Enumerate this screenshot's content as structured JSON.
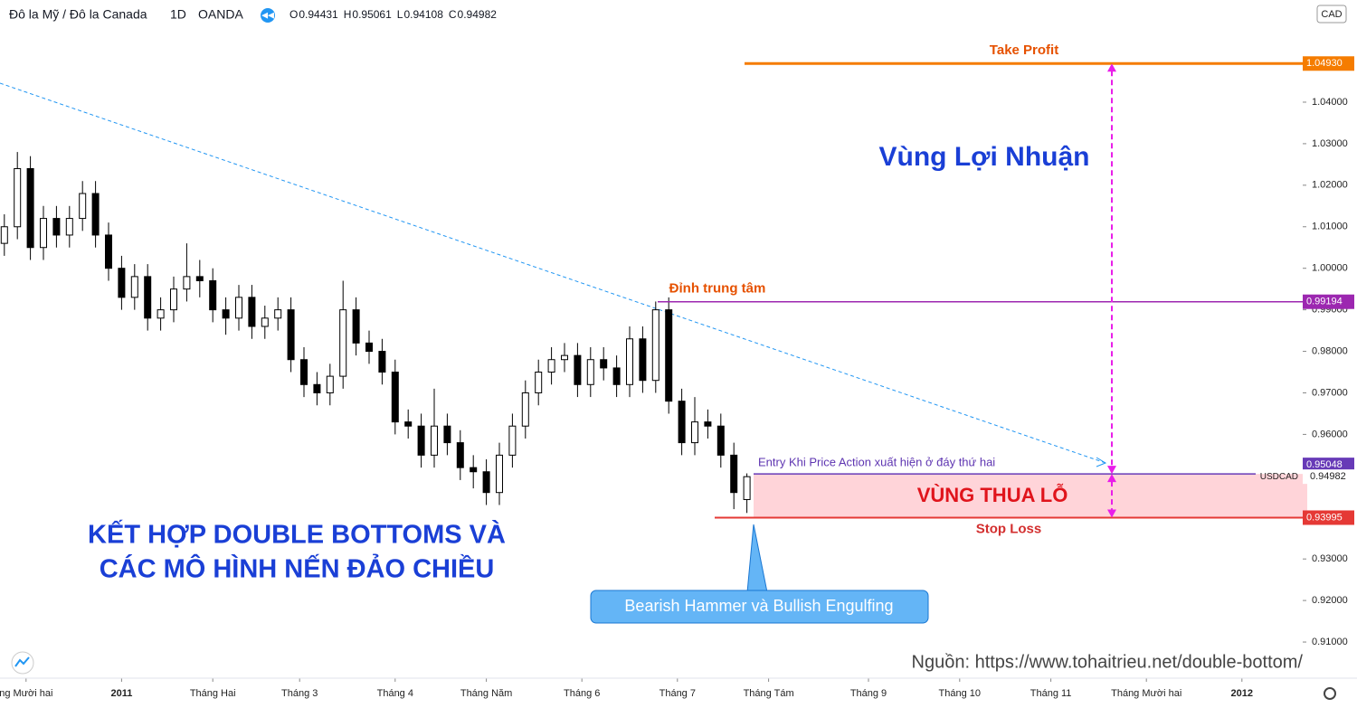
{
  "chart_data": {
    "type": "candlestick",
    "symbol": "Đô la Mỹ / Đô la Canada",
    "interval": "1D",
    "exchange": "OANDA",
    "currency": "CAD",
    "ticker": "USDCAD",
    "ohlc_labels": [
      "O",
      "H",
      "L",
      "C"
    ],
    "up_color": "#ffffff",
    "down_color": "#000000",
    "x": [
      1,
      4,
      7,
      10,
      13,
      16,
      19,
      22,
      25,
      28,
      31,
      34,
      37,
      40,
      43,
      46,
      49,
      52,
      55,
      58,
      61,
      64,
      67,
      70,
      73,
      76,
      79,
      82,
      85,
      88,
      91,
      94,
      97,
      100,
      103,
      106,
      109,
      112,
      115,
      118,
      121,
      124,
      127,
      130,
      133,
      136,
      139,
      142,
      145,
      148,
      151,
      154,
      157,
      160,
      163,
      166,
      169,
      172
    ],
    "open": [
      1.006,
      1.01,
      1.024,
      1.005,
      1.012,
      1.008,
      1.012,
      1.018,
      1.008,
      1.0,
      0.993,
      0.998,
      0.988,
      0.99,
      0.995,
      0.998,
      0.997,
      0.99,
      0.988,
      0.993,
      0.986,
      0.988,
      0.99,
      0.978,
      0.972,
      0.97,
      0.974,
      0.99,
      0.982,
      0.98,
      0.975,
      0.963,
      0.962,
      0.955,
      0.962,
      0.958,
      0.952,
      0.951,
      0.946,
      0.955,
      0.962,
      0.97,
      0.975,
      0.978,
      0.979,
      0.972,
      0.978,
      0.976,
      0.972,
      0.983,
      0.973,
      0.99,
      0.968,
      0.958,
      0.963,
      0.962,
      0.955,
      0.94431
    ],
    "high": [
      1.013,
      1.028,
      1.027,
      1.015,
      1.015,
      1.015,
      1.021,
      1.021,
      1.011,
      1.003,
      1.001,
      1.001,
      0.993,
      0.998,
      1.006,
      1.002,
      1.0,
      0.993,
      0.996,
      0.996,
      0.991,
      0.993,
      0.993,
      0.981,
      0.975,
      0.977,
      0.997,
      0.993,
      0.985,
      0.983,
      0.978,
      0.966,
      0.965,
      0.971,
      0.965,
      0.961,
      0.955,
      0.954,
      0.958,
      0.965,
      0.973,
      0.978,
      0.981,
      0.982,
      0.982,
      0.981,
      0.981,
      0.979,
      0.986,
      0.986,
      0.992,
      0.993,
      0.971,
      0.969,
      0.966,
      0.965,
      0.958,
      0.95061
    ],
    "low": [
      1.003,
      1.007,
      1.002,
      1.002,
      1.005,
      1.005,
      1.009,
      1.005,
      0.997,
      0.99,
      0.99,
      0.985,
      0.985,
      0.987,
      0.992,
      0.993,
      0.987,
      0.984,
      0.985,
      0.983,
      0.983,
      0.985,
      0.975,
      0.969,
      0.967,
      0.967,
      0.971,
      0.979,
      0.977,
      0.972,
      0.96,
      0.959,
      0.952,
      0.952,
      0.955,
      0.949,
      0.947,
      0.943,
      0.943,
      0.952,
      0.959,
      0.967,
      0.972,
      0.975,
      0.969,
      0.969,
      0.973,
      0.969,
      0.969,
      0.97,
      0.97,
      0.965,
      0.955,
      0.955,
      0.959,
      0.952,
      0.942,
      0.94108
    ],
    "close": [
      1.01,
      1.024,
      1.005,
      1.012,
      1.008,
      1.012,
      1.018,
      1.008,
      1.0,
      0.993,
      0.998,
      0.988,
      0.99,
      0.995,
      0.998,
      0.997,
      0.99,
      0.988,
      0.993,
      0.986,
      0.988,
      0.99,
      0.978,
      0.972,
      0.97,
      0.974,
      0.99,
      0.982,
      0.98,
      0.975,
      0.963,
      0.962,
      0.955,
      0.962,
      0.958,
      0.952,
      0.951,
      0.946,
      0.955,
      0.962,
      0.97,
      0.975,
      0.978,
      0.979,
      0.972,
      0.978,
      0.976,
      0.972,
      0.983,
      0.973,
      0.99,
      0.968,
      0.958,
      0.963,
      0.962,
      0.955,
      0.946,
      0.94982
    ],
    "xlim": [
      0,
      300
    ],
    "ylim": [
      0.9013,
      1.0646
    ],
    "xticks": [
      {
        "value": 6,
        "label": "ng Mười hai"
      },
      {
        "value": 28,
        "label": "2011"
      },
      {
        "value": 49,
        "label": "Tháng Hai"
      },
      {
        "value": 69,
        "label": "Tháng 3"
      },
      {
        "value": 91,
        "label": "Tháng 4"
      },
      {
        "value": 112,
        "label": "Tháng Năm"
      },
      {
        "value": 134,
        "label": "Tháng 6"
      },
      {
        "value": 156,
        "label": "Tháng 7"
      },
      {
        "value": 177,
        "label": "Tháng Tám"
      },
      {
        "value": 200,
        "label": "Tháng 9"
      },
      {
        "value": 221,
        "label": "Tháng 10"
      },
      {
        "value": 242,
        "label": "Tháng 11"
      },
      {
        "value": 264,
        "label": "Tháng Mười hai"
      },
      {
        "value": 286,
        "label": "2012"
      }
    ],
    "yticks": [
      {
        "value": 1.04,
        "label": "1.04000"
      },
      {
        "value": 1.03,
        "label": "1.03000"
      },
      {
        "value": 1.02,
        "label": "1.02000"
      },
      {
        "value": 1.01,
        "label": "1.01000"
      },
      {
        "value": 1.0,
        "label": "1.00000"
      },
      {
        "value": 0.99,
        "label": "0.99000"
      },
      {
        "value": 0.98,
        "label": "0.98000"
      },
      {
        "value": 0.97,
        "label": "0.97000"
      },
      {
        "value": 0.96,
        "label": "0.96000"
      },
      {
        "value": 0.93,
        "label": "0.93000"
      },
      {
        "value": 0.92,
        "label": "0.92000"
      },
      {
        "value": 0.91,
        "label": "0.91000"
      }
    ],
    "levels": [
      {
        "name": "Take Profit",
        "value": 1.0493,
        "label": "1.04930",
        "color": "#f57c00"
      },
      {
        "name": "Đỉnh trung tâm",
        "value": 0.99194,
        "label": "0.99194",
        "color": "#9c27b0"
      },
      {
        "name": "Entry Khi Price Action xuất hiện ở đáy thứ hai",
        "value": 0.95048,
        "label": "0.95048",
        "color": "#673ab7"
      },
      {
        "name": "Stop Loss",
        "value": 0.93995,
        "label": "0.93995",
        "color": "#e53935"
      }
    ],
    "zone_colors": [
      "#ffcdd2"
    ],
    "annotations": [
      "Vùng Lợi Nhuận",
      "VÙNG THUA LỖ",
      "KẾT HỢP DOUBLE BOTTOMS VÀ",
      "CÁC MÔ HÌNH NẾN ĐẢO CHIỀU",
      "Bearish Hammer và Bullish Engulfing",
      "Nguồn: https://www.tohaitrieu.net/double-bottom/"
    ]
  }
}
